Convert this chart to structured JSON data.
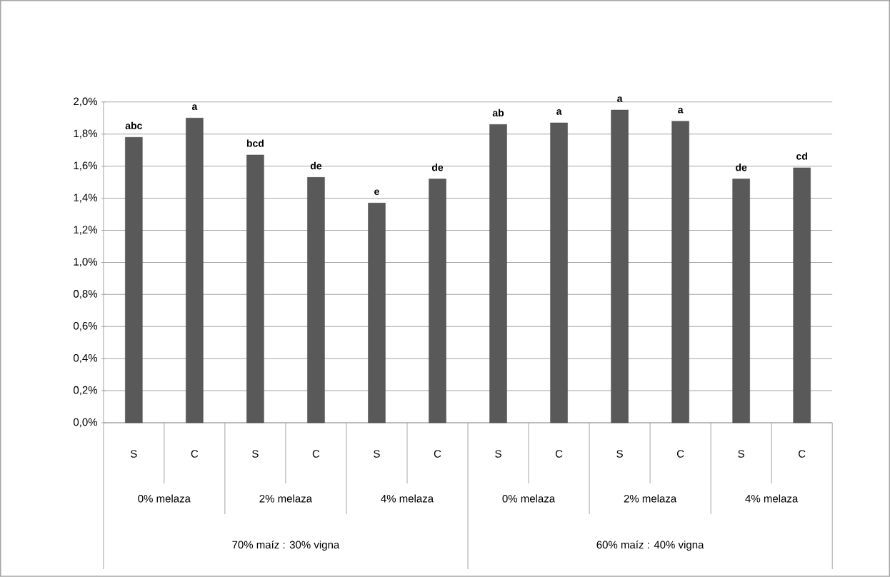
{
  "chart_data": {
    "type": "bar",
    "categories": [
      "S",
      "C",
      "S",
      "C",
      "S",
      "C",
      "S",
      "C",
      "S",
      "C",
      "S",
      "C"
    ],
    "values": [
      1.78,
      1.9,
      1.67,
      1.53,
      1.37,
      1.52,
      1.86,
      1.87,
      1.95,
      1.88,
      1.52,
      1.59
    ],
    "value_labels": [
      "abc",
      "a",
      "bcd",
      "de",
      "e",
      "de",
      "ab",
      "a",
      "a",
      "a",
      "de",
      "cd"
    ],
    "color": "#595959",
    "ylim": [
      0,
      2.0
    ],
    "yticks": [
      {
        "value": 0,
        "label": "0,0%"
      },
      {
        "value": 0.2,
        "label": "0,2%"
      },
      {
        "value": 0.4,
        "label": "0,4%"
      },
      {
        "value": 0.6,
        "label": "0,6%"
      },
      {
        "value": 0.8,
        "label": "0,8%"
      },
      {
        "value": 1.0,
        "label": "1,0%"
      },
      {
        "value": 1.2,
        "label": "1,2%"
      },
      {
        "value": 1.4,
        "label": "1,4%"
      },
      {
        "value": 1.6,
        "label": "1,6%"
      },
      {
        "value": 1.8,
        "label": "1,8%"
      },
      {
        "value": 2.0,
        "label": "2,0%"
      }
    ],
    "grid": "y",
    "annotations": [
      "0% melaza",
      "2% melaza",
      "4% melaza",
      "0% melaza",
      "2% melaza",
      "4% melaza",
      "70% maíz : 30% vigna",
      "60% maíz : 40% vigna"
    ]
  }
}
